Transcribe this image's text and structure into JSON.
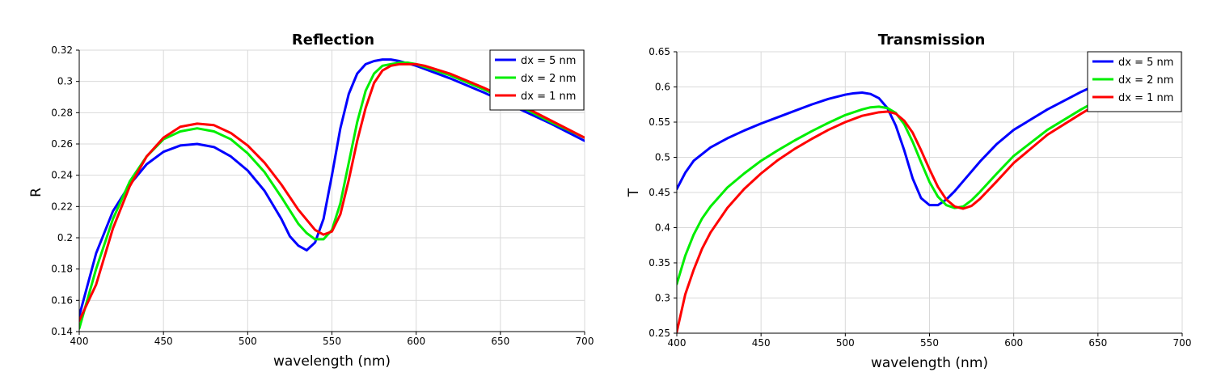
{
  "chart_data": [
    {
      "type": "line",
      "title": "Reflection",
      "xlabel": "wavelength (nm)",
      "ylabel": "R",
      "xlim": [
        400,
        700
      ],
      "ylim": [
        0.14,
        0.32
      ],
      "xticks": [
        400,
        450,
        500,
        550,
        600,
        650,
        700
      ],
      "xtick_labels": [
        "400",
        "450",
        "500",
        "550",
        "600",
        "650",
        "700"
      ],
      "yticks": [
        0.14,
        0.16,
        0.18,
        0.2,
        0.22,
        0.24,
        0.26,
        0.28,
        0.3,
        0.32
      ],
      "ytick_labels": [
        "0.14",
        "0.16",
        "0.18",
        "0.2",
        "0.22",
        "0.24",
        "0.26",
        "0.28",
        "0.3",
        "0.32"
      ],
      "grid": true,
      "legend_position": "top-right",
      "series": [
        {
          "name": "dx = 5 nm",
          "color": "#0000ff",
          "x": [
            400,
            410,
            420,
            430,
            440,
            450,
            460,
            470,
            480,
            490,
            500,
            510,
            520,
            525,
            530,
            535,
            540,
            545,
            550,
            555,
            560,
            565,
            570,
            575,
            580,
            585,
            590,
            600,
            620,
            640,
            660,
            680,
            700
          ],
          "y": [
            0.15,
            0.19,
            0.217,
            0.234,
            0.247,
            0.255,
            0.259,
            0.26,
            0.258,
            0.252,
            0.243,
            0.23,
            0.212,
            0.201,
            0.195,
            0.192,
            0.197,
            0.212,
            0.24,
            0.27,
            0.292,
            0.305,
            0.311,
            0.313,
            0.314,
            0.314,
            0.313,
            0.31,
            0.302,
            0.293,
            0.283,
            0.273,
            0.262
          ]
        },
        {
          "name": "dx = 2 nm",
          "color": "#00ee00",
          "x": [
            400,
            410,
            420,
            430,
            440,
            450,
            460,
            470,
            480,
            490,
            500,
            510,
            520,
            530,
            535,
            540,
            545,
            550,
            555,
            560,
            565,
            570,
            575,
            580,
            585,
            590,
            595,
            600,
            620,
            640,
            660,
            680,
            700
          ],
          "y": [
            0.142,
            0.18,
            0.212,
            0.236,
            0.252,
            0.263,
            0.268,
            0.27,
            0.268,
            0.263,
            0.254,
            0.242,
            0.226,
            0.209,
            0.203,
            0.199,
            0.199,
            0.205,
            0.222,
            0.248,
            0.274,
            0.294,
            0.305,
            0.31,
            0.311,
            0.312,
            0.312,
            0.311,
            0.304,
            0.295,
            0.285,
            0.274,
            0.264
          ]
        },
        {
          "name": "dx = 1 nm",
          "color": "#ff0000",
          "x": [
            400,
            410,
            420,
            430,
            440,
            450,
            460,
            470,
            480,
            490,
            500,
            510,
            520,
            530,
            540,
            545,
            550,
            555,
            560,
            565,
            570,
            575,
            580,
            585,
            590,
            595,
            600,
            605,
            620,
            640,
            660,
            680,
            700
          ],
          "y": [
            0.147,
            0.17,
            0.206,
            0.233,
            0.252,
            0.264,
            0.271,
            0.273,
            0.272,
            0.267,
            0.259,
            0.248,
            0.234,
            0.218,
            0.205,
            0.202,
            0.204,
            0.215,
            0.237,
            0.262,
            0.283,
            0.299,
            0.307,
            0.31,
            0.311,
            0.311,
            0.311,
            0.31,
            0.305,
            0.296,
            0.286,
            0.275,
            0.264
          ]
        }
      ]
    },
    {
      "type": "line",
      "title": "Transmission",
      "xlabel": "wavelength (nm)",
      "ylabel": "T",
      "xlim": [
        400,
        700
      ],
      "ylim": [
        0.25,
        0.65
      ],
      "xticks": [
        400,
        450,
        500,
        550,
        600,
        650,
        700
      ],
      "xtick_labels": [
        "400",
        "450",
        "500",
        "550",
        "600",
        "650",
        "700"
      ],
      "yticks": [
        0.25,
        0.3,
        0.35,
        0.4,
        0.45,
        0.5,
        0.55,
        0.6,
        0.65
      ],
      "ytick_labels": [
        "0.25",
        "0.3",
        "0.35",
        "0.4",
        "0.45",
        "0.5",
        "0.55",
        "0.6",
        "0.65"
      ],
      "grid": true,
      "legend_position": "top-right",
      "series": [
        {
          "name": "dx = 5 nm",
          "color": "#0000ff",
          "x": [
            400,
            405,
            410,
            420,
            430,
            440,
            450,
            460,
            470,
            480,
            490,
            500,
            505,
            510,
            515,
            520,
            525,
            530,
            535,
            540,
            545,
            550,
            555,
            560,
            565,
            570,
            580,
            590,
            600,
            620,
            640,
            650
          ],
          "y": [
            0.455,
            0.478,
            0.495,
            0.514,
            0.527,
            0.538,
            0.548,
            0.557,
            0.566,
            0.575,
            0.583,
            0.589,
            0.591,
            0.592,
            0.59,
            0.584,
            0.57,
            0.545,
            0.51,
            0.47,
            0.442,
            0.432,
            0.432,
            0.44,
            0.452,
            0.466,
            0.494,
            0.519,
            0.539,
            0.568,
            0.593,
            0.604
          ]
        },
        {
          "name": "dx = 2 nm",
          "color": "#00ee00",
          "x": [
            400,
            405,
            410,
            415,
            420,
            430,
            440,
            450,
            460,
            470,
            480,
            490,
            500,
            510,
            515,
            520,
            525,
            530,
            535,
            540,
            545,
            550,
            555,
            560,
            565,
            570,
            575,
            580,
            590,
            600,
            620,
            640,
            650
          ],
          "y": [
            0.32,
            0.36,
            0.39,
            0.413,
            0.43,
            0.457,
            0.477,
            0.495,
            0.51,
            0.524,
            0.537,
            0.549,
            0.56,
            0.568,
            0.571,
            0.572,
            0.57,
            0.563,
            0.547,
            0.522,
            0.493,
            0.465,
            0.444,
            0.432,
            0.428,
            0.43,
            0.439,
            0.451,
            0.477,
            0.502,
            0.539,
            0.568,
            0.581
          ]
        },
        {
          "name": "dx = 1 nm",
          "color": "#ff0000",
          "x": [
            400,
            405,
            410,
            415,
            420,
            430,
            440,
            450,
            460,
            470,
            480,
            490,
            500,
            510,
            520,
            525,
            530,
            535,
            540,
            545,
            550,
            555,
            560,
            565,
            570,
            575,
            580,
            590,
            600,
            620,
            640,
            650
          ],
          "y": [
            0.252,
            0.305,
            0.34,
            0.37,
            0.393,
            0.428,
            0.455,
            0.477,
            0.496,
            0.512,
            0.526,
            0.539,
            0.55,
            0.559,
            0.564,
            0.565,
            0.562,
            0.552,
            0.535,
            0.51,
            0.483,
            0.458,
            0.44,
            0.43,
            0.427,
            0.431,
            0.441,
            0.466,
            0.492,
            0.532,
            0.562,
            0.576
          ]
        }
      ]
    }
  ]
}
